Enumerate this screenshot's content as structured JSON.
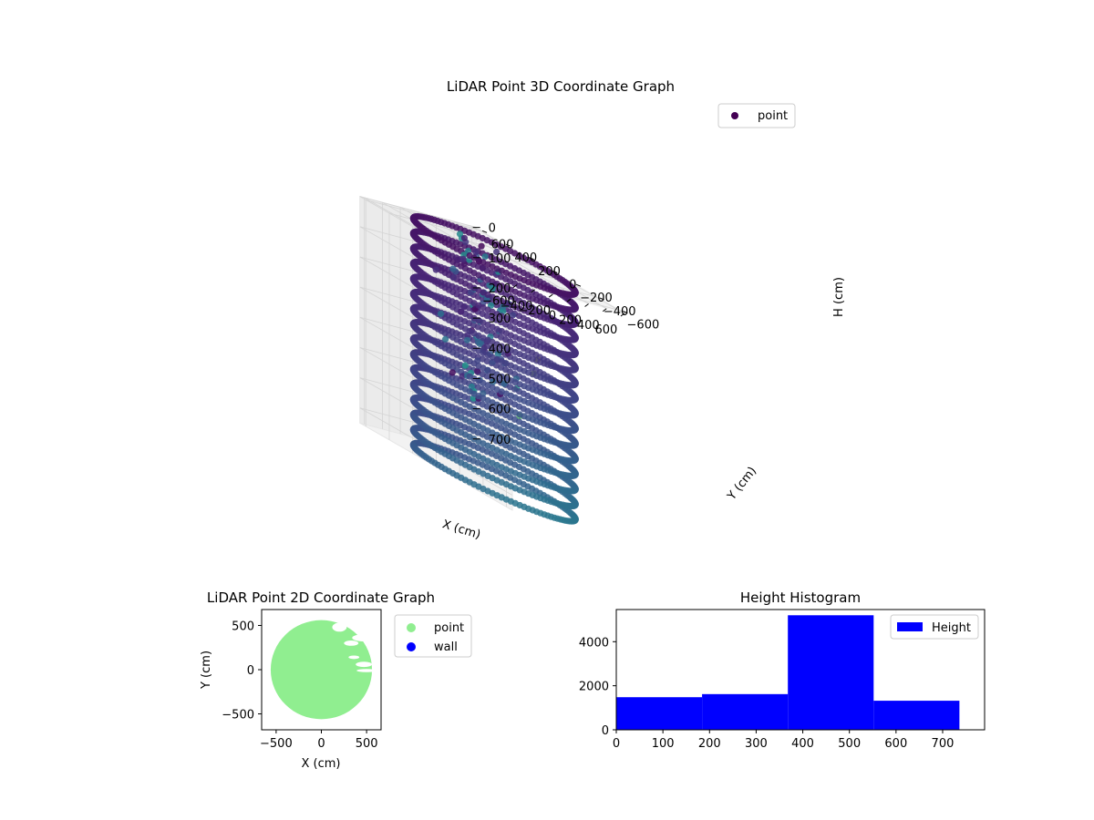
{
  "colors": {
    "point_3d": "#440154",
    "point_2d": "#90ee90",
    "wall": "#0000ff",
    "histogram": "#0000ff",
    "colormap": "viridis"
  },
  "chart_data": [
    {
      "type": "scatter",
      "projection": "3d",
      "title": "LiDAR Point 3D Coordinate Graph",
      "xlabel": "X (cm)",
      "ylabel": "Y (cm)",
      "zlabel": "H (cm)",
      "xticks": [
        "−600",
        "−400",
        "−200",
        "0",
        "200",
        "400",
        "600"
      ],
      "yticks": [
        "−600",
        "−400",
        "−200",
        "0",
        "200",
        "400",
        "600"
      ],
      "zticks": [
        "0",
        "100",
        "200",
        "300",
        "400",
        "500",
        "600",
        "700"
      ],
      "xlim": [
        -650,
        650
      ],
      "ylim": [
        -650,
        650
      ],
      "zlim": [
        0,
        750
      ],
      "z_inverted": true,
      "legend": [
        "point"
      ],
      "legend_position": "upper-right",
      "grid": true,
      "shape": {
        "kind": "cylindrical wall",
        "radius": 550,
        "height_range": [
          0,
          750
        ]
      }
    },
    {
      "type": "scatter",
      "title": "LiDAR Point 2D Coordinate Graph",
      "xlabel": "X (cm)",
      "ylabel": "Y (cm)",
      "xticks": [
        "−500",
        "0",
        "500"
      ],
      "yticks": [
        "500",
        "0",
        "−500"
      ],
      "xlim": [
        -660,
        660
      ],
      "ylim": [
        -680,
        680
      ],
      "legend": [
        "point",
        "wall"
      ],
      "legend_position": "outside-right",
      "shape": {
        "kind": "filled disc",
        "radius": 560
      }
    },
    {
      "type": "bar",
      "title": "Height Histogram",
      "xticks": [
        "0",
        "100",
        "200",
        "300",
        "400",
        "500",
        "600",
        "700"
      ],
      "yticks": [
        "0",
        "2000",
        "4000"
      ],
      "xlim": [
        0,
        790
      ],
      "ylim": [
        0,
        5460
      ],
      "legend": [
        "Height"
      ],
      "legend_position": "top-right",
      "bins": [
        {
          "from": 0,
          "to": 184,
          "count": 1480
        },
        {
          "from": 184,
          "to": 368,
          "count": 1620
        },
        {
          "from": 368,
          "to": 552,
          "count": 5200
        },
        {
          "from": 552,
          "to": 736,
          "count": 1320
        }
      ]
    }
  ]
}
